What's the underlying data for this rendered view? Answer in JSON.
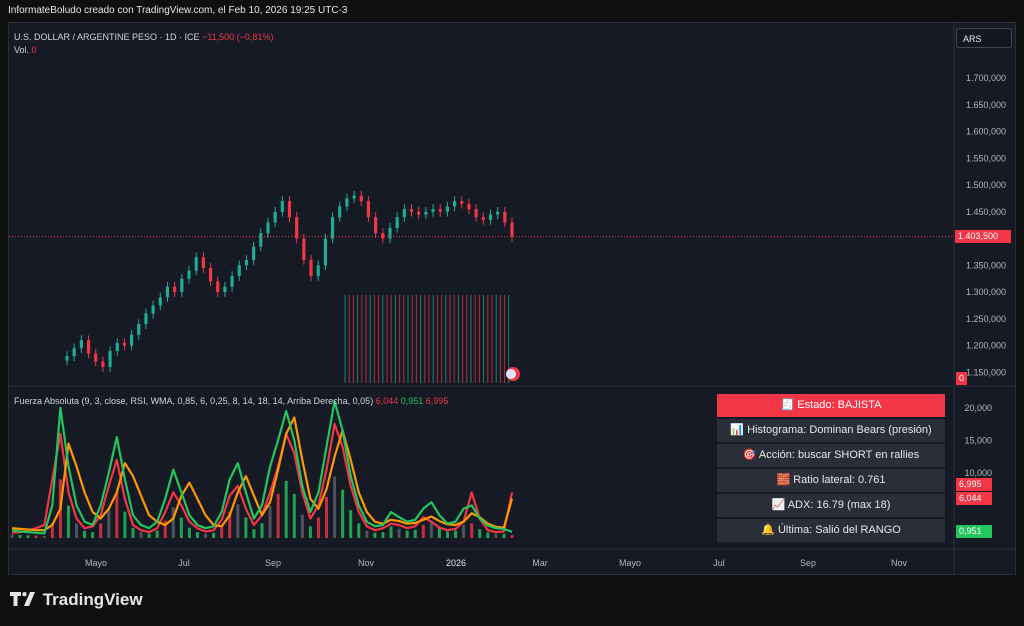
{
  "header_text": "InformateBoludo creado con TradingView.com, el Feb 10, 2026 19:25 UTC-3",
  "legend": {
    "symbol": "U.S. DOLLAR / ARGENTINE PESO · 1D · ICE",
    "change": "−11,500 (−0,81%)",
    "vol_label": "Vol.",
    "vol_value": "0"
  },
  "currency": "ARS",
  "indicator": {
    "label": "Fuerza Absoluta (9, 3, close, RSI, WMA, 0,85, 6, 0,25, 8, 14, 18, 14, Arriba Derecha, 0,05)",
    "v1": "6,044",
    "v2": "0,951",
    "v3": "6,995"
  },
  "panel": [
    {
      "icon": "🧾",
      "text": "Estado: BAJISTA"
    },
    {
      "icon": "📊",
      "text": "Histograma: Dominan Bears (presión)"
    },
    {
      "icon": "🎯",
      "text": "Acción: buscar SHORT en rallies"
    },
    {
      "icon": "🧱",
      "text": "Ratio lateral: 0.761"
    },
    {
      "icon": "📈",
      "text": "ADX: 16.79 (max 18)"
    },
    {
      "icon": "🔔",
      "text": "Última: Salió del RANGO"
    }
  ],
  "price_tags": {
    "last": "1.403,500",
    "vol": "0",
    "ind_a": "6,995",
    "ind_b": "6,044",
    "ind_c": "0,951"
  },
  "brand": "TradingView",
  "colors": {
    "up": "#22ab94",
    "down": "#f23645",
    "bg": "#161a25",
    "orange": "#ff9800",
    "green": "#22c55e",
    "red": "#f23645"
  },
  "chart_data": [
    {
      "type": "candlestick",
      "y_ticks": [
        "1.700,000",
        "1.650,000",
        "1.600,000",
        "1.550,000",
        "1.500,000",
        "1.450,000",
        "1.400,000",
        "1.350,000",
        "1.300,000",
        "1.250,000",
        "1.200,000",
        "1.150,000"
      ],
      "ylim": [
        1130000,
        1730000
      ],
      "x_ticks": [
        "Mayo",
        "Jul",
        "Sep",
        "Nov",
        "2026",
        "Mar",
        "Mayo",
        "Jul",
        "Sep",
        "Nov"
      ],
      "last_price": 1403500,
      "series_closes": [
        1180000,
        1195000,
        1210000,
        1185000,
        1170000,
        1160000,
        1190000,
        1205000,
        1200000,
        1220000,
        1240000,
        1260000,
        1275000,
        1290000,
        1310000,
        1300000,
        1325000,
        1340000,
        1365000,
        1345000,
        1320000,
        1300000,
        1310000,
        1330000,
        1350000,
        1360000,
        1385000,
        1410000,
        1430000,
        1450000,
        1470000,
        1440000,
        1400000,
        1360000,
        1330000,
        1350000,
        1400000,
        1440000,
        1460000,
        1475000,
        1480000,
        1470000,
        1440000,
        1410000,
        1400000,
        1420000,
        1440000,
        1455000,
        1450000,
        1445000,
        1450000,
        1455000,
        1450000,
        1460000,
        1470000,
        1465000,
        1455000,
        1440000,
        1435000,
        1445000,
        1450000,
        1430000,
        1403500
      ]
    },
    {
      "type": "line",
      "name": "Fuerza Absoluta",
      "y_ticks": [
        "20,000",
        "15,000",
        "10,000"
      ],
      "ylim": [
        0,
        21500
      ],
      "series": [
        {
          "name": "6,995",
          "color": "#f23645",
          "values": [
            800,
            900,
            1200,
            1500,
            2000,
            9000,
            16000,
            7000,
            3000,
            1500,
            1800,
            3500,
            8000,
            12000,
            6000,
            2000,
            1200,
            900,
            1500,
            4000,
            7000,
            5000,
            2500,
            1500,
            1000,
            1200,
            2800,
            6500,
            8000,
            4500,
            2000,
            3500,
            7000,
            11000,
            16000,
            13000,
            7000,
            3000,
            5000,
            10500,
            17500,
            14000,
            8000,
            4000,
            1800,
            1200,
            1500,
            2200,
            2000,
            1500,
            1800,
            3200,
            2500,
            1600,
            1200,
            1400,
            2500,
            7000,
            3000,
            1200,
            900,
            1000,
            6995
          ]
        },
        {
          "name": "6,044",
          "color": "#ff9800",
          "values": [
            1500,
            1400,
            1300,
            1200,
            1200,
            2000,
            4500,
            14500,
            11000,
            7000,
            4000,
            3000,
            4500,
            7000,
            11500,
            9500,
            6500,
            3500,
            2500,
            2000,
            3000,
            6500,
            8500,
            6000,
            3500,
            2000,
            1800,
            3500,
            7000,
            9500,
            6500,
            3500,
            5500,
            10500,
            16000,
            18500,
            12000,
            6000,
            4500,
            7500,
            12500,
            16500,
            12000,
            7000,
            4000,
            2500,
            2200,
            2800,
            2600,
            2200,
            2300,
            2800,
            3300,
            2600,
            2100,
            2000,
            2500,
            3800,
            3200,
            2200,
            1700,
            1600,
            6044
          ]
        },
        {
          "name": "0,951",
          "color": "#22c55e",
          "values": [
            1200,
            1000,
            900,
            800,
            700,
            5000,
            20000,
            11000,
            5000,
            2500,
            2000,
            5000,
            10000,
            15500,
            9000,
            3500,
            2000,
            1500,
            2500,
            6000,
            10500,
            7000,
            3500,
            2000,
            1500,
            1800,
            4000,
            9000,
            11500,
            7000,
            3000,
            5000,
            11000,
            15000,
            19500,
            15000,
            8000,
            4000,
            7000,
            14000,
            21000,
            16500,
            9500,
            5000,
            2500,
            1800,
            2000,
            4000,
            3200,
            2500,
            2800,
            4500,
            5500,
            3500,
            2200,
            2500,
            4500,
            5000,
            3000,
            1900,
            1500,
            1400,
            951
          ]
        }
      ]
    }
  ]
}
